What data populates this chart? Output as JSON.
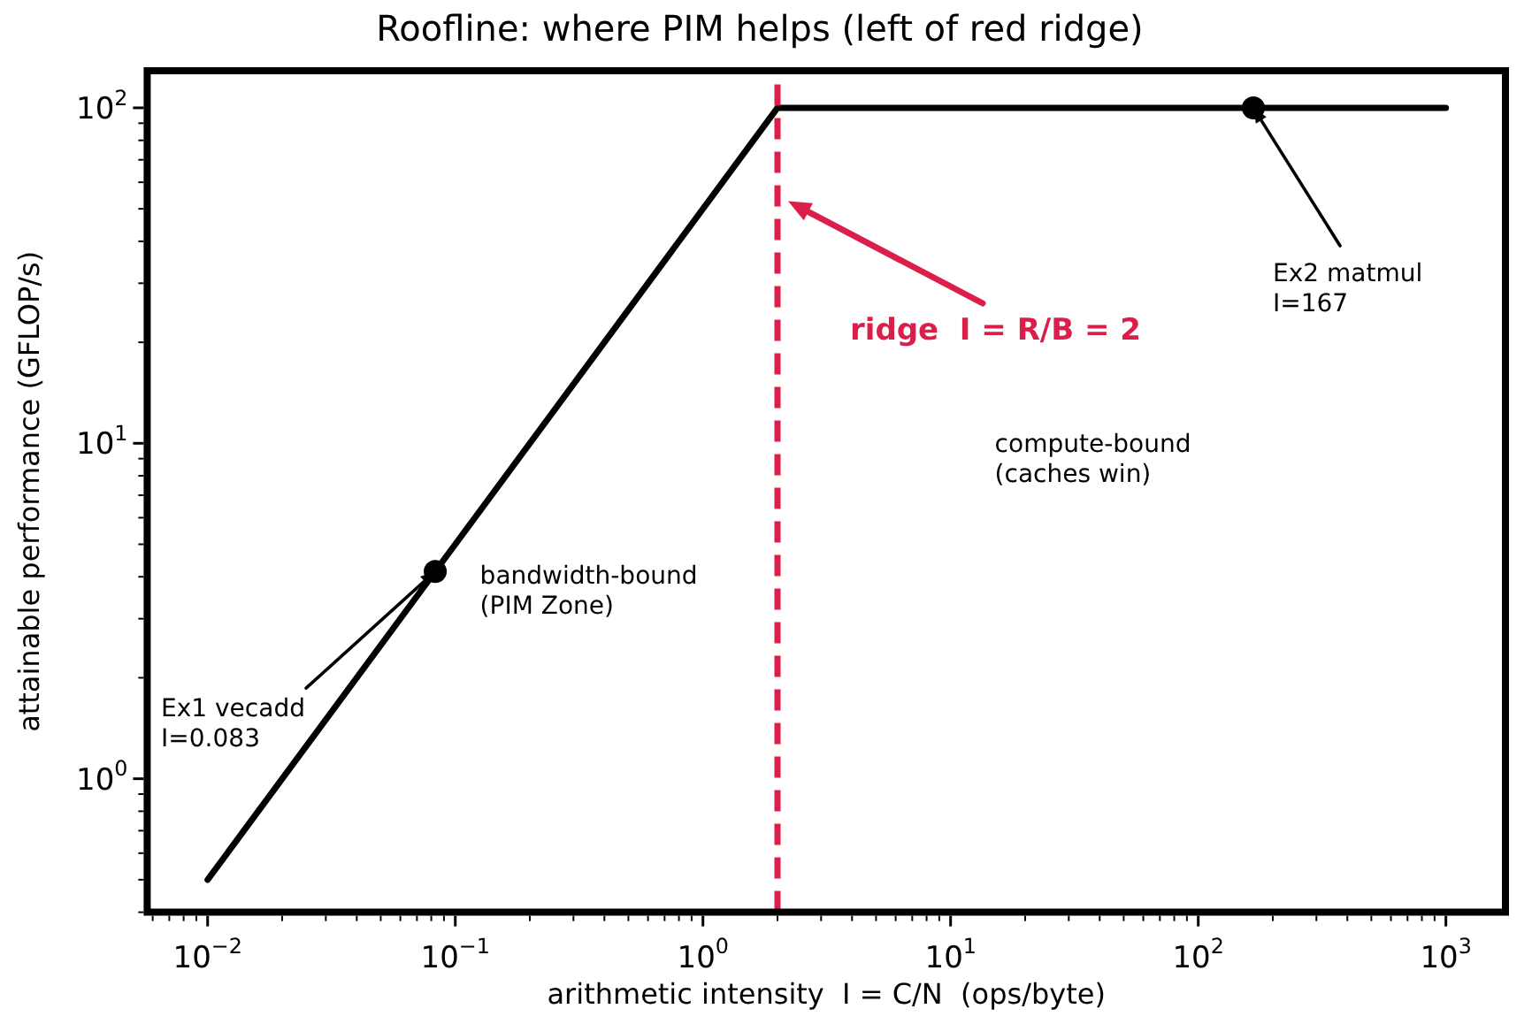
{
  "chart_data": {
    "type": "line",
    "title": "Roofline: where PIM helps (left of red ridge)",
    "xlabel": "arithmetic intensity  I = C/N  (ops/byte)",
    "ylabel": "attainable performance (GFLOP/s)",
    "log": "xy",
    "grid": false,
    "legend": false,
    "xlim": [
      0.0057,
      1740
    ],
    "ylim": [
      0.4,
      129
    ],
    "xticks": [
      {
        "value": 0.006,
        "label": null
      },
      {
        "value": 0.007,
        "label": null
      },
      {
        "value": 0.008,
        "label": null
      },
      {
        "value": 0.009,
        "label": null
      },
      {
        "value": 0.01,
        "label": "10$^{−2}$"
      },
      {
        "value": 0.02,
        "label": null
      },
      {
        "value": 0.03,
        "label": null
      },
      {
        "value": 0.04,
        "label": null
      },
      {
        "value": 0.05,
        "label": null
      },
      {
        "value": 0.06,
        "label": null
      },
      {
        "value": 0.07,
        "label": null
      },
      {
        "value": 0.08,
        "label": null
      },
      {
        "value": 0.09,
        "label": null
      },
      {
        "value": 0.1,
        "label": "10$^{−1}$"
      },
      {
        "value": 0.2,
        "label": null
      },
      {
        "value": 0.3,
        "label": null
      },
      {
        "value": 0.4,
        "label": null
      },
      {
        "value": 0.5,
        "label": null
      },
      {
        "value": 0.6,
        "label": null
      },
      {
        "value": 0.7,
        "label": null
      },
      {
        "value": 0.8,
        "label": null
      },
      {
        "value": 0.9,
        "label": null
      },
      {
        "value": 1,
        "label": "10$^{0}$"
      },
      {
        "value": 2,
        "label": null
      },
      {
        "value": 3,
        "label": null
      },
      {
        "value": 4,
        "label": null
      },
      {
        "value": 5,
        "label": null
      },
      {
        "value": 6,
        "label": null
      },
      {
        "value": 7,
        "label": null
      },
      {
        "value": 8,
        "label": null
      },
      {
        "value": 9,
        "label": null
      },
      {
        "value": 10,
        "label": "10$^{1}$"
      },
      {
        "value": 20,
        "label": null
      },
      {
        "value": 30,
        "label": null
      },
      {
        "value": 40,
        "label": null
      },
      {
        "value": 50,
        "label": null
      },
      {
        "value": 60,
        "label": null
      },
      {
        "value": 70,
        "label": null
      },
      {
        "value": 80,
        "label": null
      },
      {
        "value": 90,
        "label": null
      },
      {
        "value": 100,
        "label": "10$^{2}$"
      },
      {
        "value": 200,
        "label": null
      },
      {
        "value": 300,
        "label": null
      },
      {
        "value": 400,
        "label": null
      },
      {
        "value": 500,
        "label": null
      },
      {
        "value": 600,
        "label": null
      },
      {
        "value": 700,
        "label": null
      },
      {
        "value": 800,
        "label": null
      },
      {
        "value": 900,
        "label": null
      },
      {
        "value": 1000,
        "label": "10$^{3}$"
      }
    ],
    "yticks": [
      {
        "value": 0.4,
        "label": null
      },
      {
        "value": 0.5,
        "label": null
      },
      {
        "value": 0.6,
        "label": null
      },
      {
        "value": 0.7,
        "label": null
      },
      {
        "value": 0.8,
        "label": null
      },
      {
        "value": 0.9,
        "label": null
      },
      {
        "value": 1,
        "label": "10$^{0}$"
      },
      {
        "value": 2,
        "label": null
      },
      {
        "value": 3,
        "label": null
      },
      {
        "value": 4,
        "label": null
      },
      {
        "value": 5,
        "label": null
      },
      {
        "value": 6,
        "label": null
      },
      {
        "value": 7,
        "label": null
      },
      {
        "value": 8,
        "label": null
      },
      {
        "value": 9,
        "label": null
      },
      {
        "value": 10,
        "label": "10$^{1}$"
      },
      {
        "value": 20,
        "label": null
      },
      {
        "value": 30,
        "label": null
      },
      {
        "value": 40,
        "label": null
      },
      {
        "value": 50,
        "label": null
      },
      {
        "value": 60,
        "label": null
      },
      {
        "value": 70,
        "label": null
      },
      {
        "value": 80,
        "label": null
      },
      {
        "value": 90,
        "label": null
      },
      {
        "value": 100,
        "label": "10$^{2}$"
      }
    ],
    "series": [
      {
        "color": "#000000",
        "marker": "none",
        "line_style": "solid",
        "x": [
          0.01,
          2,
          1000
        ],
        "values": [
          0.5,
          100,
          100
        ]
      },
      {
        "type": "scatter",
        "color": "#000000",
        "marker": "circle",
        "x": [
          0.083,
          167
        ],
        "values": [
          4.15,
          100
        ]
      }
    ],
    "ref_lines": [
      {
        "axis": "x",
        "value": 2,
        "label": "ridge  I = R/B = 2",
        "color": "#dc1f4a",
        "line_style": "dashed"
      }
    ],
    "annotations": [
      "bandwidth-bound\n(PIM Zone)",
      "compute-bound\n(caches win)",
      {
        "text": "Ex1 vecadd\nI=0.083",
        "x": 0.083,
        "y": 4.15
      },
      {
        "text": "Ex2 matmul\nI=167",
        "x": 167,
        "y": 100
      }
    ]
  }
}
